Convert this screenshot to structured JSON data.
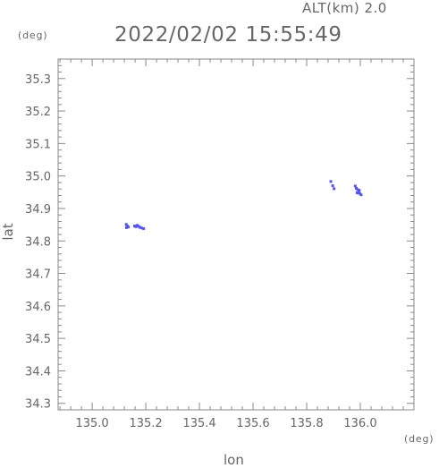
{
  "header": {
    "altitude": "ALT(km) 2.0",
    "timestamp": "2022/02/02 15:55:49"
  },
  "units": {
    "y": "(deg)",
    "x": "(deg)"
  },
  "colors": {
    "axis": "#888888",
    "text": "#666666",
    "echo": "#5555ee"
  },
  "chart_data": {
    "type": "scatter",
    "xlabel": "lon",
    "ylabel": "lat",
    "xlim": [
      134.873,
      136.2
    ],
    "ylim": [
      34.28,
      35.36
    ],
    "xticks": [
      "135.0",
      "135.2",
      "135.4",
      "135.6",
      "135.8",
      "136.0"
    ],
    "yticks": [
      "34.3",
      "34.4",
      "34.5",
      "34.6",
      "34.7",
      "34.8",
      "34.9",
      "35.0",
      "35.1",
      "35.2",
      "35.3"
    ],
    "grid": false,
    "points": [
      [
        135.127,
        34.851
      ],
      [
        135.131,
        34.846
      ],
      [
        135.128,
        34.841
      ],
      [
        135.135,
        34.843
      ],
      [
        135.158,
        34.846
      ],
      [
        135.163,
        34.844
      ],
      [
        135.168,
        34.848
      ],
      [
        135.173,
        34.845
      ],
      [
        135.178,
        34.842
      ],
      [
        135.184,
        34.84
      ],
      [
        135.192,
        34.838
      ],
      [
        135.89,
        34.983
      ],
      [
        135.897,
        34.97
      ],
      [
        135.902,
        34.961
      ],
      [
        135.981,
        34.969
      ],
      [
        135.985,
        34.962
      ],
      [
        135.99,
        34.958
      ],
      [
        135.994,
        34.95
      ],
      [
        135.998,
        34.946
      ],
      [
        136.003,
        34.942
      ],
      [
        135.988,
        34.948
      ],
      [
        135.996,
        34.956
      ]
    ]
  }
}
